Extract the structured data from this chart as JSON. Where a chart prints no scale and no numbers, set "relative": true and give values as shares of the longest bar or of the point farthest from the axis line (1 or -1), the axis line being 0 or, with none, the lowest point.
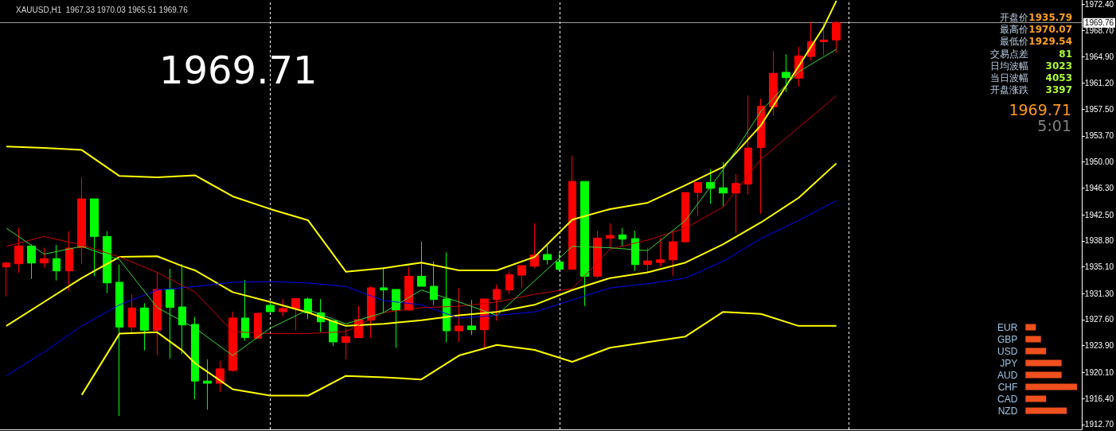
{
  "chart_data": [
    {
      "type": "candlestick",
      "title": "XAUUSD,H1  1967.33 1970.03 1965.51 1969.76",
      "annotations": [
        "1969.71",
        "开盘价",
        "1935.79",
        "最高价",
        "1970.07",
        "最低价",
        "1929.54",
        "交易点差",
        "81",
        "日均波幅",
        "3023",
        "当日波幅",
        "4053",
        "开盘涨跌",
        "3397",
        "1969.71",
        "5:01"
      ],
      "categories": [
        null,
        null,
        null,
        null,
        null,
        null,
        null,
        null,
        null,
        null,
        null,
        null,
        null,
        null,
        null,
        null,
        null,
        null,
        null,
        null,
        null,
        null,
        null,
        null,
        null,
        null,
        null,
        null,
        null,
        null,
        null,
        null,
        null,
        null,
        null,
        null,
        null,
        null,
        null,
        null,
        null,
        null,
        null,
        null,
        null,
        null,
        null,
        null,
        null,
        null,
        null,
        null,
        null,
        null,
        null,
        null,
        null,
        null,
        null,
        null,
        null,
        null,
        null,
        null,
        null,
        null,
        null,
        null,
        null,
        null,
        null,
        null,
        null,
        null,
        null,
        null,
        null,
        null,
        null,
        null,
        null,
        null,
        null,
        null,
        null,
        null
      ],
      "ohlc": [
        [
          1935.08,
          1935.8,
          1930.9,
          1935.64
        ],
        [
          1935.53,
          1940.61,
          1934.22,
          1938.06
        ],
        [
          1938.05,
          1938.28,
          1933.39,
          1935.64
        ],
        [
          1935.64,
          1937.75,
          1934.97,
          1936.25
        ],
        [
          1936.25,
          1938.2,
          1933.16,
          1934.52
        ],
        [
          1934.52,
          1940.16,
          1931.73,
          1937.75
        ],
        [
          1937.83,
          1947.83,
          1935.53,
          1944.75
        ],
        [
          1944.75,
          1944.75,
          1933.76,
          1939.41
        ],
        [
          1939.41,
          1940.16,
          1931.36,
          1932.82
        ],
        [
          1932.9,
          1935.42,
          1913.9,
          1926.54
        ],
        [
          1926.54,
          1931.21,
          1925.49,
          1929.25
        ],
        [
          1929.25,
          1929.93,
          1923.23,
          1926.09
        ],
        [
          1926.09,
          1934.29,
          1922.55,
          1931.88
        ],
        [
          1931.88,
          1934.82,
          1922.1,
          1929.32
        ],
        [
          1929.4,
          1935.49,
          1922.7,
          1926.84
        ],
        [
          1926.92,
          1927.97,
          1916.31,
          1918.87
        ],
        [
          1918.87,
          1921.95,
          1914.8,
          1918.56
        ],
        [
          1918.56,
          1921.72,
          1917.29,
          1920.6
        ],
        [
          1920.37,
          1928.72,
          1920.2,
          1927.82
        ],
        [
          1927.82,
          1933.24,
          1924.58,
          1925.04
        ],
        [
          1924.96,
          1928.5,
          1924.9,
          1928.5
        ],
        [
          1929.63,
          1930.1,
          1928.7,
          1928.72
        ],
        [
          1928.72,
          1930.53,
          1927.97,
          1929.17
        ],
        [
          1929.17,
          1930.6,
          1926.09,
          1930.6
        ],
        [
          1930.53,
          1930.75,
          1927.67,
          1928.57
        ],
        [
          1928.57,
          1930.53,
          1925.86,
          1927.29
        ],
        [
          1927.44,
          1927.44,
          1923.83,
          1924.43
        ],
        [
          1924.36,
          1926.31,
          1921.95,
          1925.19
        ],
        [
          1925.03,
          1929.55,
          1925.03,
          1927.59
        ],
        [
          1927.52,
          1932.33,
          1925.03,
          1932.11
        ],
        [
          1932.11,
          1935.04,
          1928.57,
          1931.81
        ],
        [
          1931.88,
          1931.88,
          1923.6,
          1928.95
        ],
        [
          1928.95,
          1935.04,
          1928.95,
          1933.76
        ],
        [
          1933.76,
          1938.65,
          1932.33,
          1932.33
        ],
        [
          1932.33,
          1935.87,
          1929.7,
          1930.45
        ],
        [
          1930.53,
          1937.15,
          1924.36,
          1926.01
        ],
        [
          1926.01,
          1932.11,
          1924.43,
          1926.69
        ],
        [
          1926.69,
          1930.38,
          1925.41,
          1926.16
        ],
        [
          1926.16,
          1930.53,
          1923.53,
          1930.53
        ],
        [
          1930.45,
          1932.56,
          1927.44,
          1931.88
        ],
        [
          1931.81,
          1934.59,
          1931.2,
          1933.99
        ],
        [
          1933.91,
          1935.27,
          1932.11,
          1935.27
        ],
        [
          1935.19,
          1941.29,
          1934.89,
          1936.77
        ],
        [
          1936.85,
          1938.28,
          1935.42,
          1936.1
        ],
        [
          1935.79,
          1937.15,
          1934.5,
          1934.74
        ],
        [
          1934.74,
          1950.91,
          1934.74,
          1947.23
        ],
        [
          1947.23,
          1947.23,
          1929.54,
          1933.76
        ],
        [
          1933.76,
          1940.23,
          1933.46,
          1939.18
        ],
        [
          1939.18,
          1941.28,
          1937.75,
          1939.55
        ],
        [
          1939.63,
          1940.61,
          1938.05,
          1939.02
        ],
        [
          1939.1,
          1940.23,
          1934.51,
          1935.41
        ],
        [
          1935.41,
          1937.82,
          1934.21,
          1935.94
        ],
        [
          1935.71,
          1939.18,
          1935.11,
          1936.09
        ],
        [
          1936.09,
          1940.23,
          1933.83,
          1938.65
        ],
        [
          1938.65,
          1945.65,
          1938.5,
          1945.65
        ],
        [
          1945.65,
          1947.08,
          1942.34,
          1947.08
        ],
        [
          1947.08,
          1948.96,
          1944.07,
          1946.25
        ],
        [
          1946.32,
          1949.94,
          1943.69,
          1945.57
        ],
        [
          1945.57,
          1948.28,
          1939.85,
          1946.93
        ],
        [
          1946.85,
          1959.42,
          1945.35,
          1951.97
        ],
        [
          1952.04,
          1958.96,
          1942.64,
          1957.91
        ],
        [
          1957.84,
          1965.74,
          1956.56,
          1962.58
        ],
        [
          1962.73,
          1965.29,
          1959.94,
          1961.97
        ],
        [
          1961.9,
          1966.34,
          1960.7,
          1965.06
        ],
        [
          1964.98,
          1969.87,
          1964.46,
          1967.09
        ],
        [
          1967.09,
          1969.95,
          1965.13,
          1967.32
        ],
        [
          1967.33,
          1970.03,
          1965.51,
          1969.76
        ],
        null,
        null,
        null,
        null,
        null,
        null,
        null,
        null,
        null,
        null,
        null,
        null,
        null,
        null,
        null,
        null,
        null,
        null,
        null
      ],
      "colors": [
        "#ff0000",
        "#ff0000",
        "#00ff00",
        "#ff0000",
        "#00ff00",
        "#ff0000",
        "#ff0000",
        "#00ff00",
        "#00ff00",
        "#00ff00",
        "#ff0000",
        "#00ff00",
        "#ff0000",
        "#00ff00",
        "#00ff00",
        "#00ff00",
        "#00ff00",
        "#ff0000",
        "#ff0000",
        "#00ff00",
        "#ff0000",
        "#00ff00",
        "#ff0000",
        "#ff0000",
        "#00ff00",
        "#00ff00",
        "#00ff00",
        "#ff0000",
        "#ff0000",
        "#ff0000",
        "#00ff00",
        "#00ff00",
        "#ff0000",
        "#00ff00",
        "#00ff00",
        "#00ff00",
        "#ff0000",
        "#00ff00",
        "#ff0000",
        "#ff0000",
        "#ff0000",
        "#ff0000",
        "#ff0000",
        "#00ff00",
        "#00ff00",
        "#ff0000",
        "#00ff00",
        "#ff0000",
        "#ff0000",
        "#00ff00",
        "#00ff00",
        "#ff0000",
        "#ff0000",
        "#ff0000",
        "#ff0000",
        "#ff0000",
        "#00ff00",
        "#00ff00",
        "#ff0000",
        "#ff0000",
        "#ff0000",
        "#ff0000",
        "#00ff00",
        "#ff0000",
        "#ff0000",
        "#ff0000",
        "#ff0000",
        null,
        null,
        null,
        null,
        null,
        null,
        null,
        null,
        null,
        null,
        null,
        null,
        null,
        null,
        null,
        null,
        null,
        null,
        null
      ],
      "series": [
        {
          "type": "line",
          "color": "#ffff00",
          "values": [
            1952.2,
            null,
            null,
            1952.0,
            null,
            null,
            1951.7,
            null,
            null,
            1948.0,
            null,
            null,
            1947.8,
            null,
            null,
            1948.1,
            null,
            null,
            1945.1,
            null,
            null,
            1943.3,
            null,
            null,
            1941.7,
            null,
            null,
            1934.4,
            null,
            null,
            1934.9,
            null,
            null,
            1935.7,
            null,
            null,
            1934.6,
            null,
            null,
            1934.6,
            null,
            null,
            1936.5,
            null,
            null,
            1941.8,
            null,
            null,
            1943.3,
            null,
            null,
            1944.2,
            null,
            null,
            1946.7,
            null,
            null,
            1949.3,
            null,
            null,
            1955.2,
            null,
            null,
            1963.6,
            null,
            1969.2,
            1972.9,
            null,
            null,
            null,
            null,
            null,
            null,
            null,
            null,
            null,
            null,
            null,
            null,
            null,
            null,
            null,
            null,
            null,
            null,
            null
          ]
        },
        {
          "type": "line",
          "color": "#ffff00",
          "values": [
            1926.7,
            null,
            null,
            1930.1,
            null,
            null,
            1933.5,
            null,
            null,
            1936.5,
            null,
            null,
            1936.6,
            null,
            1935.2,
            1934.6,
            null,
            null,
            1931.5,
            null,
            null,
            1930.1,
            null,
            null,
            1928.6,
            null,
            null,
            1926.7,
            null,
            null,
            1927.0,
            null,
            null,
            1927.5,
            null,
            null,
            1928.2,
            null,
            null,
            1928.7,
            null,
            null,
            1929.7,
            null,
            null,
            1931.8,
            null,
            null,
            1933.5,
            null,
            null,
            1934.3,
            null,
            null,
            1935.7,
            null,
            null,
            1938.3,
            null,
            null,
            1941.4,
            null,
            null,
            1944.9,
            null,
            null,
            1949.8,
            null,
            null,
            null,
            null,
            null,
            null,
            null,
            null,
            null,
            null,
            null,
            null,
            null,
            null,
            null,
            null,
            null,
            null,
            null
          ]
        },
        {
          "type": "line",
          "color": "#ffff00",
          "values": [
            null,
            null,
            null,
            null,
            null,
            null,
            1916.9,
            null,
            null,
            1925.6,
            null,
            null,
            1925.8,
            null,
            1923.2,
            1921.4,
            null,
            null,
            1917.7,
            null,
            null,
            1916.8,
            null,
            null,
            1916.8,
            null,
            null,
            1919.6,
            null,
            null,
            1919.4,
            null,
            null,
            1919.1,
            null,
            null,
            1922.5,
            null,
            null,
            1924.0,
            null,
            null,
            1923.3,
            null,
            null,
            1921.6,
            null,
            null,
            1923.6,
            null,
            null,
            1924.4,
            null,
            null,
            1925.2,
            null,
            null,
            1928.7,
            null,
            null,
            1928.4,
            null,
            null,
            1926.7,
            null,
            null,
            1926.7,
            null,
            null,
            null,
            null,
            null,
            null,
            null,
            null,
            null,
            null,
            null,
            null,
            null,
            null,
            null,
            null,
            null,
            null,
            null
          ]
        },
        {
          "type": "line",
          "color": "#0000ff",
          "values": [
            1919.6,
            null,
            null,
            1923.0,
            null,
            null,
            1926.7,
            null,
            null,
            1929.7,
            null,
            null,
            1931.8,
            null,
            null,
            1932.3,
            null,
            null,
            1932.9,
            null,
            null,
            1933.0,
            null,
            null,
            1932.8,
            null,
            null,
            1932.3,
            null,
            null,
            1930.3,
            null,
            null,
            1929.7,
            null,
            null,
            1927.8,
            null,
            null,
            1928.2,
            null,
            null,
            1928.7,
            null,
            null,
            1930.4,
            null,
            null,
            1932.1,
            null,
            null,
            1932.7,
            null,
            null,
            1933.5,
            null,
            null,
            1935.9,
            null,
            null,
            1939.1,
            null,
            null,
            1941.7,
            null,
            null,
            1944.5,
            null,
            null,
            null,
            null,
            null,
            null,
            null,
            null,
            null,
            null,
            null,
            null,
            null,
            null,
            null,
            null,
            null,
            null,
            null
          ]
        },
        {
          "type": "line",
          "color": "#cc0000",
          "values": [
            1938.0,
            null,
            null,
            1939.4,
            null,
            null,
            1938.2,
            null,
            null,
            1936.5,
            null,
            null,
            1934.3,
            null,
            null,
            1931.5,
            null,
            null,
            1925.9,
            null,
            null,
            1925.6,
            null,
            null,
            1925.6,
            null,
            null,
            1925.9,
            null,
            null,
            1928.6,
            null,
            null,
            1929.3,
            null,
            null,
            1929.5,
            null,
            null,
            1930.1,
            null,
            null,
            1931.2,
            null,
            null,
            1932.0,
            null,
            null,
            1937.6,
            null,
            null,
            1938.9,
            null,
            null,
            1940.6,
            null,
            null,
            1943.6,
            null,
            null,
            1950.4,
            null,
            null,
            1954.9,
            null,
            null,
            1959.4,
            null,
            null,
            null,
            null,
            null,
            null,
            null,
            null,
            null,
            null,
            null,
            null,
            null,
            null,
            null,
            null,
            null,
            null,
            null
          ]
        },
        {
          "type": "line",
          "color": "#33dd33",
          "values": [
            1940.6,
            null,
            null,
            1936.9,
            null,
            null,
            1938.0,
            null,
            null,
            1936.1,
            null,
            null,
            1929.3,
            null,
            null,
            1926.4,
            null,
            null,
            1922.5,
            null,
            null,
            1926.4,
            null,
            null,
            1929.0,
            null,
            null,
            1927.0,
            null,
            null,
            1928.6,
            null,
            null,
            1931.8,
            null,
            null,
            1930.1,
            null,
            null,
            1928.2,
            null,
            null,
            1933.1,
            null,
            null,
            1938.0,
            null,
            null,
            1937.8,
            null,
            null,
            1937.4,
            null,
            null,
            1941.7,
            null,
            null,
            1948.9,
            null,
            null,
            1957.2,
            null,
            null,
            1962.8,
            null,
            null,
            1966.0,
            null,
            null,
            null,
            null,
            null,
            null,
            null,
            null,
            null,
            null,
            null,
            null,
            null,
            null,
            null,
            null,
            null,
            null,
            null
          ]
        }
      ],
      "ylim": [
        1912.0,
        1973.0
      ],
      "yticks": [
        {
          "value": 1972.4,
          "label": "1972.40"
        },
        {
          "value": 1968.7,
          "label": "1968.70"
        },
        {
          "value": 1964.9,
          "label": "1964.90"
        },
        {
          "value": 1961.2,
          "label": "1961.20"
        },
        {
          "value": 1957.5,
          "label": "1957.50"
        },
        {
          "value": 1953.7,
          "label": "1953.70"
        },
        {
          "value": 1950.0,
          "label": "1950.00"
        },
        {
          "value": 1946.3,
          "label": "1946.30"
        },
        {
          "value": 1942.5,
          "label": "1942.50"
        },
        {
          "value": 1938.8,
          "label": "1938.80"
        },
        {
          "value": 1935.1,
          "label": "1935.10"
        },
        {
          "value": 1931.3,
          "label": "1931.30"
        },
        {
          "value": 1927.6,
          "label": "1927.60"
        },
        {
          "value": 1923.9,
          "label": "1923.90"
        },
        {
          "value": 1920.1,
          "label": "1920.10"
        },
        {
          "value": 1916.4,
          "label": "1916.40"
        },
        {
          "value": 1912.7,
          "label": "1912.70"
        }
      ],
      "ref_lines": [
        {
          "axis": "y",
          "value": 1969.76,
          "label": "1969.76",
          "color": "#a0a0a0"
        }
      ],
      "tick_labels": "y",
      "grid": "x"
    },
    {
      "type": "bar",
      "orientation": "horizontal",
      "relative": true,
      "categories": [
        "EUR",
        "GBP",
        "USD",
        "JPY",
        "AUD",
        "CHF",
        "CAD",
        "NZD"
      ],
      "values": [
        0.2,
        0.3,
        0.4,
        0.7,
        0.7,
        1,
        0.4,
        0.8
      ],
      "color": "#f0501e"
    }
  ]
}
